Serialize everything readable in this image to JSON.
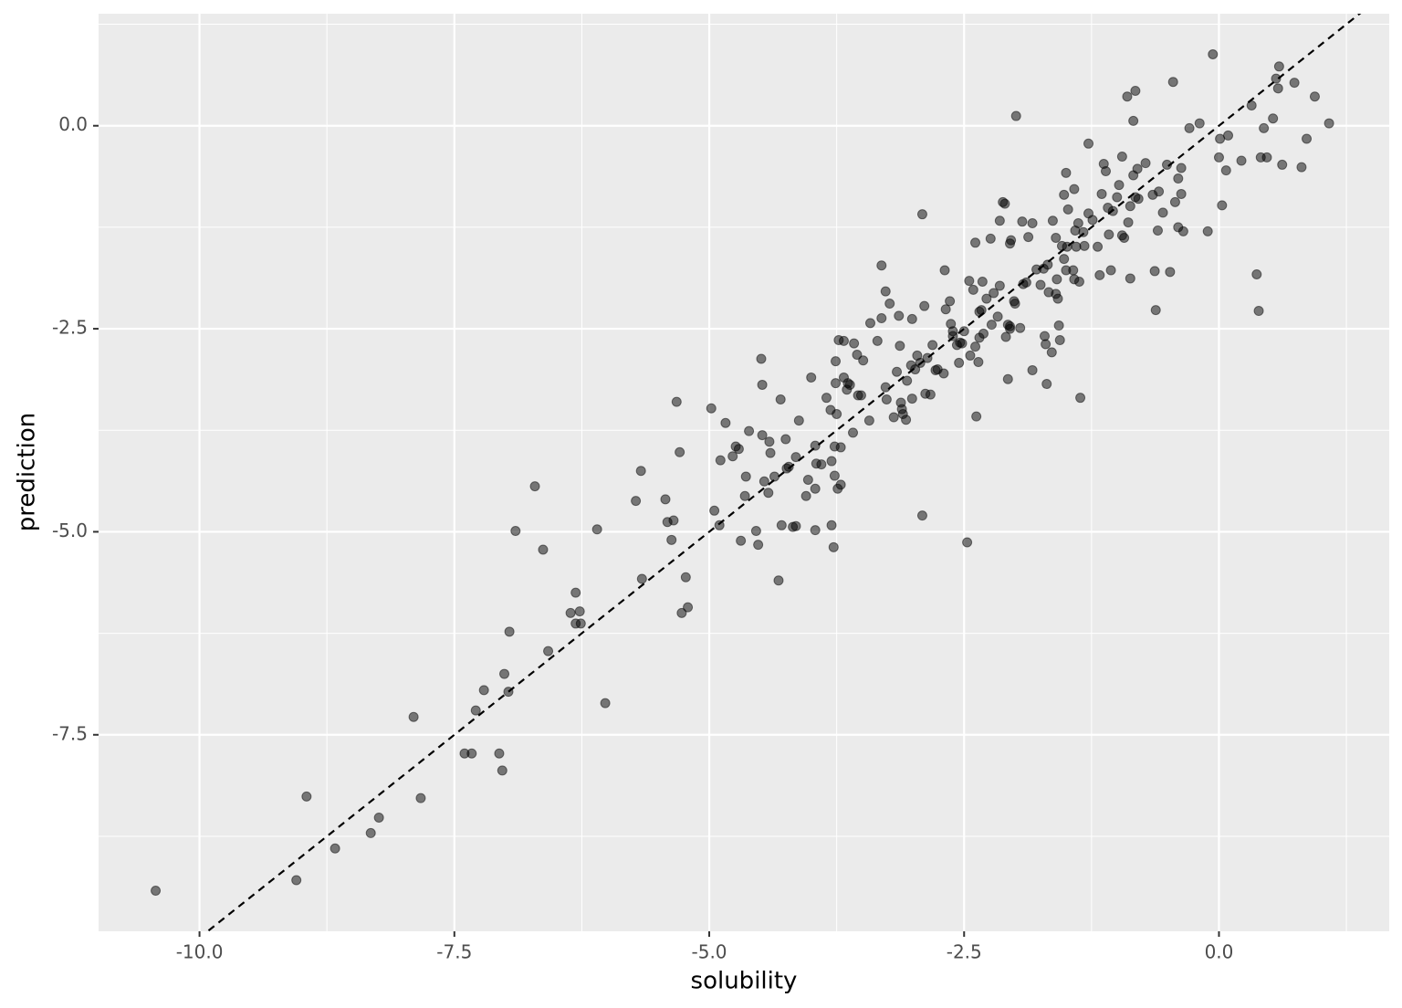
{
  "chart_data": {
    "type": "scatter",
    "x_label": "solubility",
    "y_label": "prediction",
    "color": "#000000",
    "opacity": 0.5,
    "grid": true,
    "reference_line": {
      "slope": 1,
      "intercept": 0,
      "color": "#000000",
      "dashed": true
    },
    "xlim": [
      -10.99,
      1.67
    ],
    "ylim": [
      -9.92,
      1.38
    ],
    "xticks": [
      {
        "value": -10,
        "label": "-10.0"
      },
      -7.5,
      {
        "value": -5,
        "label": "-5.0"
      },
      -2.5,
      {
        "value": 0,
        "label": "0.0"
      }
    ],
    "yticks": [
      {
        "value": -7.5,
        "label": "-7.5"
      },
      {
        "value": -5,
        "label": "-5.0"
      },
      -2.5,
      {
        "value": 0,
        "label": "0.0"
      }
    ],
    "x": [
      -10.43,
      -9.05,
      -8.95,
      -8.67,
      -8.32,
      -8.24,
      -7.83,
      -7.9,
      -7.4,
      -7.33,
      -7.29,
      -7.21,
      -7.06,
      -7.03,
      -7.01,
      -6.97,
      -6.96,
      -6.9,
      -6.71,
      -6.63,
      -6.58,
      -6.36,
      -6.31,
      -6.31,
      -6.27,
      -6.26,
      -6.1,
      -6.02,
      -5.72,
      -5.67,
      -5.66,
      -5.43,
      -5.41,
      -5.37,
      -5.35,
      -5.32,
      -5.29,
      -5.27,
      -5.23,
      -5.21,
      -4.98,
      -4.95,
      -4.9,
      -4.89,
      -4.84,
      -4.77,
      -4.74,
      -4.71,
      -4.69,
      -4.65,
      -4.64,
      -4.61,
      -4.54,
      -4.52,
      -4.49,
      -4.48,
      -4.48,
      -4.46,
      -4.42,
      -4.41,
      -4.4,
      -4.36,
      -4.32,
      -4.3,
      -4.29,
      -4.25,
      -4.24,
      -4.22,
      -4.18,
      -4.15,
      -4.15,
      -4.12,
      -4.05,
      -4.03,
      -4.0,
      -3.96,
      -3.96,
      -3.95,
      -3.96,
      -3.9,
      -3.85,
      -3.81,
      -3.8,
      -3.8,
      -3.78,
      -3.77,
      -3.77,
      -3.76,
      -3.76,
      -3.75,
      -3.74,
      -3.73,
      -3.71,
      -3.71,
      -3.68,
      -3.68,
      -3.65,
      -3.64,
      -3.62,
      -3.59,
      -3.58,
      -3.55,
      -3.54,
      -3.51,
      -3.49,
      -3.43,
      -3.42,
      -3.35,
      -3.31,
      -3.31,
      -3.27,
      -3.27,
      -3.26,
      -3.23,
      -3.19,
      -3.16,
      -3.14,
      -3.13,
      -3.12,
      -3.11,
      -3.1,
      -3.07,
      -3.06,
      -3.02,
      -3.01,
      -3.01,
      -2.98,
      -2.96,
      -2.93,
      -2.91,
      -2.91,
      -2.89,
      -2.88,
      -2.86,
      -2.83,
      -2.81,
      -2.78,
      -2.76,
      -2.7,
      -2.69,
      -2.68,
      -2.64,
      -2.63,
      -2.61,
      -2.61,
      -2.57,
      -2.55,
      -2.54,
      -2.52,
      -2.5,
      -2.47,
      -2.45,
      -2.44,
      -2.41,
      -2.39,
      -2.39,
      -2.38,
      -2.36,
      -2.35,
      -2.35,
      -2.33,
      -2.32,
      -2.31,
      -2.28,
      -2.24,
      -2.23,
      -2.21,
      -2.17,
      -2.15,
      -2.15,
      -2.12,
      -2.1,
      -2.09,
      -2.07,
      -2.07,
      -2.05,
      -2.05,
      -2.05,
      -2.04,
      -2.01,
      -2.0,
      -1.99,
      -1.95,
      -1.93,
      -1.92,
      -1.89,
      -1.87,
      -1.83,
      -1.83,
      -1.79,
      -1.75,
      -1.72,
      -1.71,
      -1.7,
      -1.69,
      -1.68,
      -1.67,
      -1.64,
      -1.63,
      -1.6,
      -1.6,
      -1.59,
      -1.58,
      -1.57,
      -1.56,
      -1.54,
      -1.52,
      -1.52,
      -1.5,
      -1.5,
      -1.49,
      -1.48,
      -1.43,
      -1.42,
      -1.42,
      -1.41,
      -1.4,
      -1.38,
      -1.37,
      -1.36,
      -1.33,
      -1.32,
      -1.28,
      -1.28,
      -1.24,
      -1.19,
      -1.17,
      -1.15,
      -1.13,
      -1.11,
      -1.09,
      -1.08,
      -1.06,
      -1.04,
      -1.0,
      -0.98,
      -0.95,
      -0.95,
      -0.93,
      -0.9,
      -0.89,
      -0.87,
      -0.87,
      -0.84,
      -0.84,
      -0.82,
      -0.82,
      -0.8,
      -0.79,
      -0.72,
      -0.65,
      -0.63,
      -0.6,
      -0.62,
      -0.59,
      -0.55,
      -0.51,
      -0.48,
      -0.45,
      -0.43,
      -0.4,
      -0.4,
      -0.37,
      -0.37,
      -0.35,
      -0.29,
      -0.19,
      -0.11,
      -0.06,
      0.0,
      0.01,
      0.03,
      0.07,
      0.09,
      0.22,
      0.32,
      0.37,
      0.39,
      0.41,
      0.44,
      0.47,
      0.53,
      0.56,
      0.58,
      0.59,
      0.62,
      0.74,
      0.81,
      0.86,
      0.94,
      1.08
    ],
    "y": [
      -9.42,
      -9.29,
      -8.26,
      -8.9,
      -8.71,
      -8.52,
      -8.28,
      -7.28,
      -7.73,
      -7.73,
      -7.2,
      -6.95,
      -7.73,
      -7.94,
      -6.75,
      -6.97,
      -6.23,
      -4.99,
      -4.44,
      -5.22,
      -6.47,
      -6.0,
      -5.75,
      -6.13,
      -5.98,
      -6.13,
      -4.97,
      -7.11,
      -4.62,
      -4.25,
      -5.58,
      -4.6,
      -4.88,
      -5.1,
      -4.86,
      -3.4,
      -4.02,
      -6.0,
      -5.56,
      -5.93,
      -3.48,
      -4.74,
      -4.92,
      -4.12,
      -3.66,
      -4.07,
      -3.95,
      -3.98,
      -5.11,
      -4.56,
      -4.32,
      -3.76,
      -4.99,
      -5.16,
      -2.87,
      -3.19,
      -3.81,
      -4.38,
      -4.52,
      -3.89,
      -4.03,
      -4.32,
      -5.6,
      -3.37,
      -4.92,
      -3.86,
      -4.22,
      -4.2,
      -4.94,
      -4.93,
      -4.08,
      -3.63,
      -4.56,
      -4.36,
      -3.1,
      -4.47,
      -3.94,
      -4.16,
      -4.98,
      -4.17,
      -3.35,
      -3.5,
      -4.92,
      -4.13,
      -5.19,
      -3.95,
      -4.31,
      -2.9,
      -3.17,
      -3.55,
      -4.47,
      -2.64,
      -3.96,
      -4.42,
      -2.65,
      -3.1,
      -3.25,
      -3.17,
      -3.19,
      -3.78,
      -2.68,
      -2.82,
      -3.32,
      -3.32,
      -2.89,
      -3.63,
      -2.43,
      -2.65,
      -1.72,
      -2.37,
      -2.04,
      -3.22,
      -3.37,
      -2.19,
      -3.59,
      -3.03,
      -2.34,
      -2.71,
      -3.41,
      -3.49,
      -3.55,
      -3.62,
      -3.14,
      -2.95,
      -2.38,
      -3.36,
      -3.0,
      -2.83,
      -2.92,
      -1.09,
      -4.8,
      -2.22,
      -3.3,
      -2.86,
      -3.31,
      -2.7,
      -3.01,
      -3.0,
      -3.05,
      -1.78,
      -2.26,
      -2.16,
      -2.44,
      -2.53,
      -2.59,
      -2.7,
      -2.92,
      -2.67,
      -2.68,
      -2.53,
      -5.13,
      -1.91,
      -2.83,
      -2.02,
      -1.44,
      -2.72,
      -3.58,
      -2.91,
      -2.29,
      -2.61,
      -2.27,
      -1.92,
      -2.56,
      -2.13,
      -1.39,
      -2.45,
      -2.06,
      -2.35,
      -1.17,
      -1.97,
      -0.94,
      -0.96,
      -2.6,
      -3.12,
      -2.45,
      -1.45,
      -2.47,
      -2.5,
      -1.41,
      -2.16,
      -2.19,
      0.12,
      -2.49,
      -1.18,
      -1.95,
      -1.93,
      -1.37,
      -1.2,
      -3.01,
      -1.77,
      -1.96,
      -1.76,
      -2.59,
      -2.69,
      -3.18,
      -1.71,
      -2.05,
      -2.79,
      -1.17,
      -1.38,
      -2.07,
      -1.89,
      -2.13,
      -2.46,
      -2.64,
      -1.48,
      -1.64,
      -0.85,
      -0.58,
      -1.78,
      -1.49,
      -1.03,
      -1.78,
      -0.78,
      -1.89,
      -1.29,
      -1.49,
      -1.2,
      -1.92,
      -3.35,
      -1.31,
      -1.48,
      -0.22,
      -1.08,
      -1.16,
      -1.49,
      -1.84,
      -0.84,
      -0.47,
      -0.56,
      -1.01,
      -1.34,
      -1.78,
      -1.05,
      -0.88,
      -0.73,
      -1.35,
      -0.38,
      -1.38,
      0.36,
      -1.19,
      -1.88,
      -0.99,
      -0.61,
      0.06,
      0.43,
      -0.88,
      -0.53,
      -0.9,
      -0.46,
      -0.85,
      -1.79,
      -1.29,
      -2.27,
      -0.81,
      -1.07,
      -0.48,
      -1.8,
      0.54,
      -0.94,
      -1.25,
      -0.65,
      -0.52,
      -0.84,
      -1.3,
      -0.03,
      0.03,
      -1.3,
      0.88,
      -0.39,
      -0.16,
      -0.98,
      -0.55,
      -0.12,
      -0.43,
      0.25,
      -1.83,
      -2.28,
      -0.39,
      -0.03,
      -0.39,
      0.09,
      0.58,
      0.46,
      0.73,
      -0.48,
      0.53,
      -0.51,
      -0.16,
      0.36,
      0.03
    ]
  }
}
